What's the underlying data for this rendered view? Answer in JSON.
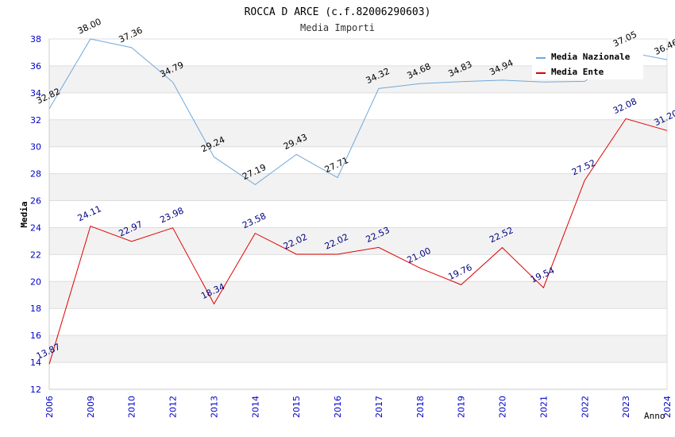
{
  "chart_data": {
    "type": "line",
    "title": "ROCCA D ARCE (c.f.82006290603)",
    "subtitle": "Media Importi",
    "xlabel": "Anno",
    "ylabel": "Media",
    "ylim": [
      12,
      38
    ],
    "yticks": [
      12,
      14,
      16,
      18,
      20,
      22,
      24,
      26,
      28,
      30,
      32,
      34,
      36,
      38
    ],
    "categories": [
      "2006",
      "2009",
      "2010",
      "2012",
      "2013",
      "2014",
      "2015",
      "2016",
      "2017",
      "2018",
      "2019",
      "2020",
      "2021",
      "2022",
      "2023",
      "2024"
    ],
    "legend_position": "top-right",
    "grid": true,
    "series": [
      {
        "name": "Media Nazionale",
        "color": "#6fa8dc",
        "values": [
          32.82,
          38.0,
          37.36,
          34.79,
          29.24,
          27.19,
          29.43,
          27.71,
          34.32,
          34.68,
          34.83,
          34.94,
          34.8,
          34.85,
          37.05,
          36.46
        ],
        "labels": [
          "32.82",
          "38.00",
          "37.36",
          "34.79",
          "29.24",
          "27.19",
          "29.43",
          "27.71",
          "34.32",
          "34.68",
          "34.83",
          "34.94",
          "",
          "",
          "37.05",
          "36.46"
        ]
      },
      {
        "name": "Media Ente",
        "color": "#e00000",
        "values": [
          13.87,
          24.11,
          22.97,
          23.98,
          18.34,
          23.58,
          22.02,
          22.02,
          22.53,
          21.0,
          19.76,
          22.52,
          19.54,
          27.52,
          32.08,
          31.2
        ],
        "labels": [
          "13.87",
          "24.11",
          "22.97",
          "23.98",
          "18.34",
          "23.58",
          "22.02",
          "22.02",
          "22.53",
          "21.00",
          "19.76",
          "22.52",
          "19.54",
          "27.52",
          "32.08",
          "31.20"
        ]
      }
    ]
  }
}
